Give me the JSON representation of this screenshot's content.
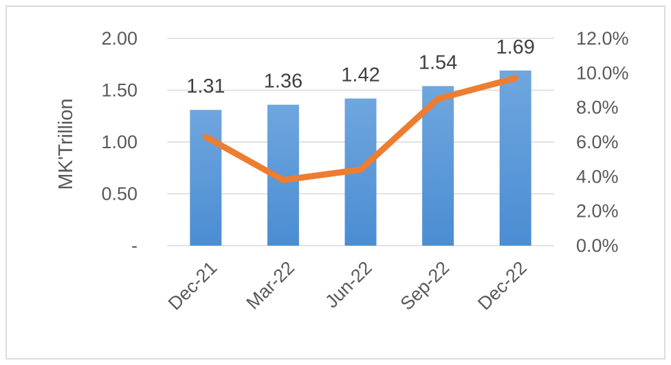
{
  "chart_data": {
    "type": "bar",
    "categories": [
      "Dec-21",
      "Mar-22",
      "Jun-22",
      "Sep-22",
      "Dec-22"
    ],
    "series": [
      {
        "type": "bar",
        "axis": "left",
        "values": [
          1.31,
          1.36,
          1.42,
          1.54,
          1.69
        ],
        "data_labels": [
          "1.31",
          "1.36",
          "1.42",
          "1.54",
          "1.69"
        ],
        "color": "#4A8DD3"
      },
      {
        "type": "line",
        "axis": "right",
        "values": [
          6.3,
          3.8,
          4.4,
          8.5,
          9.7
        ],
        "color": "#ED7D31"
      }
    ],
    "ylabel": "MK'Trillion",
    "ylim": [
      0,
      2.0
    ],
    "y_ticks": [
      "-",
      "0.50",
      "1.00",
      "1.50",
      "2.00"
    ],
    "y2lim": [
      0,
      12
    ],
    "y2_ticks": [
      "0.0%",
      "2.0%",
      "4.0%",
      "6.0%",
      "8.0%",
      "10.0%",
      "12.0%"
    ],
    "grid": true,
    "legend": "none"
  },
  "colors": {
    "gridline": "#D9D9D9",
    "border": "#D0D0D0"
  }
}
